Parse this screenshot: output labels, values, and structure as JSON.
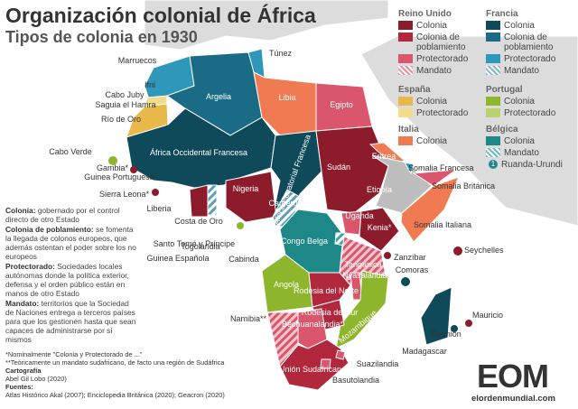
{
  "title": "Organización colonial de África",
  "subtitle": "Tipos de colonia en 1930",
  "legend": [
    {
      "name": "Reino Unido",
      "items": [
        {
          "label": "Colonia",
          "color": "#8c1c2c"
        },
        {
          "label": "Colonia de poblamiento",
          "color": "#b1283d"
        },
        {
          "label": "Protectorado",
          "color": "#d9566c"
        },
        {
          "label": "Mandato",
          "color": "#e8909c",
          "pattern": "hatch"
        }
      ]
    },
    {
      "name": "Francia",
      "items": [
        {
          "label": "Colonia",
          "color": "#0e4a5a"
        },
        {
          "label": "Colonia de poblamiento",
          "color": "#1a6c86"
        },
        {
          "label": "Protectorado",
          "color": "#2f97ba"
        },
        {
          "label": "Mandato",
          "color": "#86b6c6",
          "pattern": "hatch"
        }
      ]
    },
    {
      "name": "España",
      "items": [
        {
          "label": "Colonia",
          "color": "#e8b94a"
        },
        {
          "label": "Protectorado",
          "color": "#f3dc8c"
        }
      ]
    },
    {
      "name": "Portugal",
      "items": [
        {
          "label": "Colonia",
          "color": "#8db62c"
        },
        {
          "label": "Protectorado",
          "color": "#b8d36c"
        }
      ]
    },
    {
      "name": "Italia",
      "items": [
        {
          "label": "Colonia",
          "color": "#f07a52"
        }
      ]
    },
    {
      "name": "Bélgica",
      "items": [
        {
          "label": "Colonia",
          "color": "#1e8888"
        },
        {
          "label": "Mandato",
          "color": "#6cbcbc",
          "pattern": "hatch"
        },
        {
          "label": "Ruanda-Urundi",
          "marker": "1",
          "color": "#1e8888"
        }
      ]
    }
  ],
  "territories": [
    "Túnez",
    "Marruecos",
    "Ifni",
    "Cabo Juby",
    "Saguia el Hamra",
    "Río de Oro",
    "Argelia",
    "Libia",
    "Egipto",
    "África Occidental Francesa",
    "Cabo Verde",
    "Gambia*",
    "Guinea Portuguesa",
    "Sierra Leona*",
    "Liberia",
    "Costa de Oro",
    "Togolandia",
    "Nigeria",
    "Camerún",
    "África Ecuatorial Francesa",
    "Sudán",
    "Eritrea",
    "Somalia Francesa",
    "Somalia Británica",
    "Etiopía",
    "Somalia Italiana",
    "Uganda",
    "Kenia*",
    "Zanzíbar",
    "Seychelles",
    "Tanganica",
    "Congo Belga",
    "Santo Tomé y Príncipe",
    "Guinea Española",
    "Cabinda",
    "Comoras",
    "Angola",
    "Rodesia del Norte",
    "Nyasalandia",
    "Rodesia del sur",
    "Mozambique",
    "Namibia**",
    "Bechuanalandia*",
    "Madagascar",
    "Mauricio",
    "Reunión",
    "Suazilandia",
    "Unión Sudafricana",
    "Basutolandia"
  ],
  "notes": [
    {
      "term": "Colonia:",
      "text": "gobernado por el control directo de otro Estado"
    },
    {
      "term": "Colonia de poblamiento:",
      "text": "se fomenta la llegada de colonos europeos, que además ostentan el poder sobre los no europeos"
    },
    {
      "term": "Protectorado:",
      "text": "Sociedades locales autónomas donde la política exterior, defensa y el orden público están en manos de otro Estado"
    },
    {
      "term": "Mandato:",
      "text": "territorios que la Sociedad de Naciones entrega a terceros países para que los gestionen hasta que sean capaces de administrarse por sí mismos"
    }
  ],
  "footnotes": [
    "*Nominalmente \"Colonia y Protectorado de ...\"",
    "**Teóricamente un mandato sudafricano, de facto una región de Sudáfrica"
  ],
  "credits": [
    {
      "term": "Cartografía",
      "text": "Abel Gil Lobo (2020)"
    },
    {
      "term": "Fuentes:",
      "text": "Atlas Histórico Akal (2007); Enciclopedia Británica (2020); Geacron (2020)"
    }
  ],
  "logo": "EOM",
  "site": "elordenmundial.com"
}
